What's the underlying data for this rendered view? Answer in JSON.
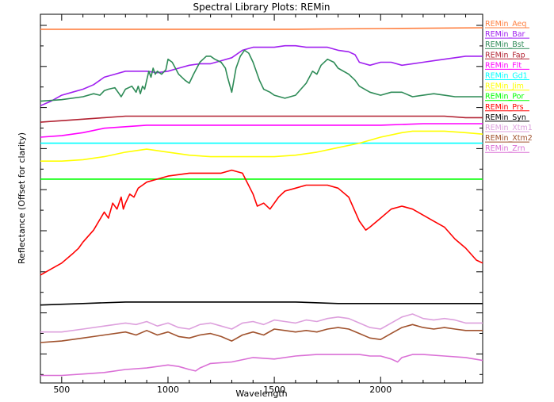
{
  "chart_data": {
    "type": "line",
    "title": "Spectral Library Plots: REMin",
    "xlabel": "Wavelength",
    "ylabel": "Reflectance (Offset for clarity)",
    "xlim": [
      400,
      2480
    ],
    "x_ticks": [
      500,
      1000,
      1500,
      2000
    ],
    "legend_placement": "right",
    "series": [
      {
        "name": "REMin_Aeq",
        "color": "#ff7f3f",
        "x": [
          400,
          800,
          1200,
          1600,
          2000,
          2480
        ],
        "y": [
          1.0,
          1.0,
          1.0,
          1.0,
          1.005,
          1.01
        ]
      },
      {
        "name": "REMin_Bar",
        "color": "#a020f0",
        "x": [
          400,
          450,
          500,
          550,
          600,
          650,
          700,
          750,
          800,
          850,
          900,
          950,
          1000,
          1050,
          1100,
          1150,
          1200,
          1250,
          1300,
          1350,
          1400,
          1450,
          1500,
          1550,
          1600,
          1650,
          1700,
          1750,
          1800,
          1850,
          1880,
          1900,
          1950,
          2000,
          2050,
          2100,
          2150,
          2200,
          2250,
          2300,
          2350,
          2400,
          2480
        ],
        "y": [
          0.49,
          0.52,
          0.56,
          0.58,
          0.6,
          0.63,
          0.68,
          0.7,
          0.72,
          0.72,
          0.72,
          0.71,
          0.72,
          0.74,
          0.76,
          0.77,
          0.77,
          0.79,
          0.81,
          0.86,
          0.88,
          0.88,
          0.88,
          0.89,
          0.89,
          0.88,
          0.88,
          0.88,
          0.86,
          0.85,
          0.83,
          0.78,
          0.76,
          0.78,
          0.78,
          0.76,
          0.77,
          0.78,
          0.79,
          0.8,
          0.81,
          0.82,
          0.82
        ]
      },
      {
        "name": "REMin_Bst",
        "color": "#2e8b57",
        "x": [
          400,
          500,
          600,
          650,
          680,
          700,
          720,
          750,
          770,
          780,
          800,
          830,
          850,
          860,
          870,
          880,
          890,
          900,
          910,
          920,
          930,
          940,
          950,
          970,
          990,
          1000,
          1020,
          1050,
          1080,
          1100,
          1120,
          1150,
          1180,
          1200,
          1220,
          1250,
          1270,
          1280,
          1300,
          1320,
          1340,
          1360,
          1380,
          1400,
          1430,
          1450,
          1480,
          1500,
          1550,
          1600,
          1650,
          1680,
          1700,
          1720,
          1750,
          1780,
          1800,
          1850,
          1880,
          1900,
          1950,
          2000,
          2050,
          2100,
          2150,
          2200,
          2250,
          2300,
          2350,
          2400,
          2480
        ],
        "y": [
          0.52,
          0.53,
          0.55,
          0.57,
          0.56,
          0.59,
          0.6,
          0.61,
          0.57,
          0.55,
          0.6,
          0.62,
          0.58,
          0.62,
          0.57,
          0.62,
          0.6,
          0.66,
          0.72,
          0.68,
          0.74,
          0.7,
          0.72,
          0.7,
          0.73,
          0.8,
          0.78,
          0.7,
          0.66,
          0.64,
          0.7,
          0.78,
          0.82,
          0.82,
          0.8,
          0.78,
          0.74,
          0.68,
          0.58,
          0.74,
          0.82,
          0.86,
          0.84,
          0.78,
          0.66,
          0.6,
          0.58,
          0.56,
          0.54,
          0.56,
          0.64,
          0.72,
          0.7,
          0.76,
          0.8,
          0.78,
          0.74,
          0.7,
          0.66,
          0.62,
          0.58,
          0.56,
          0.58,
          0.58,
          0.55,
          0.56,
          0.57,
          0.56,
          0.55,
          0.55,
          0.55
        ]
      },
      {
        "name": "REMin_Fap",
        "color": "#b22232",
        "x": [
          400,
          500,
          600,
          700,
          800,
          900,
          1000,
          1100,
          1200,
          1300,
          1400,
          1500,
          1600,
          1700,
          1800,
          1900,
          2000,
          2100,
          2200,
          2300,
          2400,
          2480
        ],
        "y": [
          0.38,
          0.39,
          0.4,
          0.41,
          0.42,
          0.42,
          0.42,
          0.42,
          0.42,
          0.42,
          0.42,
          0.42,
          0.42,
          0.42,
          0.42,
          0.42,
          0.42,
          0.42,
          0.42,
          0.42,
          0.41,
          0.41
        ]
      },
      {
        "name": "REMin_Flt",
        "color": "#ff00ff",
        "x": [
          400,
          500,
          600,
          700,
          800,
          900,
          1000,
          1200,
          1400,
          1600,
          1800,
          2000,
          2200,
          2480
        ],
        "y": [
          0.28,
          0.29,
          0.31,
          0.34,
          0.35,
          0.36,
          0.36,
          0.36,
          0.36,
          0.36,
          0.36,
          0.36,
          0.37,
          0.37
        ]
      },
      {
        "name": "REMin_Gd1",
        "color": "#00ffff",
        "x": [
          400,
          800,
          1200,
          1600,
          2000,
          2480
        ],
        "y": [
          0.24,
          0.24,
          0.24,
          0.24,
          0.24,
          0.24
        ]
      },
      {
        "name": "REMin_Jim",
        "color": "#ffff00",
        "x": [
          400,
          500,
          600,
          700,
          800,
          900,
          1000,
          1100,
          1200,
          1300,
          1400,
          1500,
          1600,
          1700,
          1800,
          1900,
          2000,
          2100,
          2150,
          2200,
          2300,
          2400,
          2480
        ],
        "y": [
          0.12,
          0.12,
          0.13,
          0.15,
          0.18,
          0.2,
          0.18,
          0.16,
          0.15,
          0.15,
          0.15,
          0.15,
          0.16,
          0.18,
          0.21,
          0.24,
          0.28,
          0.31,
          0.32,
          0.32,
          0.32,
          0.31,
          0.3
        ]
      },
      {
        "name": "REMin_Por",
        "color": "#00ff00",
        "x": [
          400,
          800,
          1200,
          1600,
          2000,
          2480
        ],
        "y": [
          0.0,
          0.0,
          0.0,
          0.0,
          0.0,
          0.0
        ]
      },
      {
        "name": "REMin_Prs",
        "color": "#ff0000",
        "x": [
          400,
          450,
          500,
          550,
          580,
          600,
          650,
          700,
          720,
          740,
          760,
          780,
          790,
          800,
          820,
          840,
          860,
          880,
          900,
          950,
          1000,
          1100,
          1200,
          1250,
          1300,
          1350,
          1400,
          1420,
          1450,
          1480,
          1500,
          1520,
          1550,
          1600,
          1650,
          1700,
          1750,
          1800,
          1850,
          1900,
          1930,
          1950,
          2000,
          2050,
          2100,
          2150,
          2200,
          2250,
          2300,
          2350,
          2400,
          2450,
          2480
        ],
        "y": [
          -0.64,
          -0.6,
          -0.56,
          -0.5,
          -0.46,
          -0.42,
          -0.34,
          -0.22,
          -0.26,
          -0.16,
          -0.2,
          -0.12,
          -0.2,
          -0.16,
          -0.1,
          -0.12,
          -0.06,
          -0.04,
          -0.02,
          0.0,
          0.02,
          0.04,
          0.04,
          0.04,
          0.06,
          0.04,
          -0.1,
          -0.18,
          -0.16,
          -0.2,
          -0.16,
          -0.12,
          -0.08,
          -0.06,
          -0.04,
          -0.04,
          -0.04,
          -0.06,
          -0.12,
          -0.28,
          -0.34,
          -0.32,
          -0.26,
          -0.2,
          -0.18,
          -0.2,
          -0.24,
          -0.28,
          -0.32,
          -0.4,
          -0.46,
          -0.54,
          -0.56
        ]
      },
      {
        "name": "REMin_Syn",
        "color": "#000000",
        "x": [
          400,
          600,
          800,
          1000,
          1200,
          1400,
          1600,
          1800,
          2000,
          2200,
          2480
        ],
        "y": [
          -0.84,
          -0.83,
          -0.82,
          -0.82,
          -0.82,
          -0.82,
          -0.82,
          -0.83,
          -0.83,
          -0.83,
          -0.83
        ]
      },
      {
        "name": "REMin_Xtm1",
        "color": "#dda0dd",
        "x": [
          400,
          500,
          600,
          700,
          800,
          850,
          900,
          950,
          1000,
          1050,
          1100,
          1150,
          1200,
          1250,
          1300,
          1350,
          1400,
          1450,
          1500,
          1550,
          1600,
          1650,
          1700,
          1750,
          1800,
          1850,
          1900,
          1950,
          2000,
          2050,
          2100,
          2150,
          2200,
          2250,
          2300,
          2350,
          2400,
          2480
        ],
        "y": [
          -1.02,
          -1.02,
          -1.0,
          -0.98,
          -0.96,
          -0.97,
          -0.95,
          -0.98,
          -0.96,
          -0.99,
          -1.0,
          -0.97,
          -0.96,
          -0.98,
          -1.0,
          -0.96,
          -0.95,
          -0.97,
          -0.94,
          -0.95,
          -0.96,
          -0.94,
          -0.95,
          -0.93,
          -0.92,
          -0.93,
          -0.96,
          -0.99,
          -1.0,
          -0.96,
          -0.92,
          -0.9,
          -0.93,
          -0.94,
          -0.93,
          -0.94,
          -0.96,
          -0.96
        ]
      },
      {
        "name": "REMin_Xtm2",
        "color": "#a0522d",
        "x": [
          400,
          500,
          600,
          700,
          800,
          850,
          900,
          950,
          1000,
          1050,
          1100,
          1150,
          1200,
          1250,
          1300,
          1350,
          1400,
          1450,
          1500,
          1550,
          1600,
          1650,
          1700,
          1750,
          1800,
          1850,
          1900,
          1950,
          2000,
          2050,
          2100,
          2150,
          2200,
          2250,
          2300,
          2350,
          2400,
          2480
        ],
        "y": [
          -1.09,
          -1.08,
          -1.06,
          -1.04,
          -1.02,
          -1.04,
          -1.01,
          -1.04,
          -1.02,
          -1.05,
          -1.06,
          -1.04,
          -1.03,
          -1.05,
          -1.08,
          -1.04,
          -1.02,
          -1.04,
          -1.0,
          -1.01,
          -1.02,
          -1.01,
          -1.02,
          -1.0,
          -0.99,
          -1.0,
          -1.03,
          -1.06,
          -1.07,
          -1.03,
          -0.99,
          -0.97,
          -0.99,
          -1.0,
          -0.99,
          -1.0,
          -1.01,
          -1.01
        ]
      },
      {
        "name": "REMin_Zrn",
        "color": "#da70d6",
        "x": [
          400,
          500,
          600,
          700,
          800,
          900,
          1000,
          1050,
          1100,
          1130,
          1150,
          1200,
          1300,
          1400,
          1500,
          1600,
          1700,
          1800,
          1900,
          1950,
          2000,
          2050,
          2080,
          2100,
          2150,
          2200,
          2300,
          2400,
          2480
        ],
        "y": [
          -1.31,
          -1.31,
          -1.3,
          -1.29,
          -1.27,
          -1.26,
          -1.24,
          -1.25,
          -1.27,
          -1.28,
          -1.26,
          -1.23,
          -1.22,
          -1.19,
          -1.2,
          -1.18,
          -1.17,
          -1.17,
          -1.17,
          -1.18,
          -1.18,
          -1.2,
          -1.22,
          -1.19,
          -1.17,
          -1.17,
          -1.18,
          -1.19,
          -1.21
        ]
      }
    ]
  }
}
